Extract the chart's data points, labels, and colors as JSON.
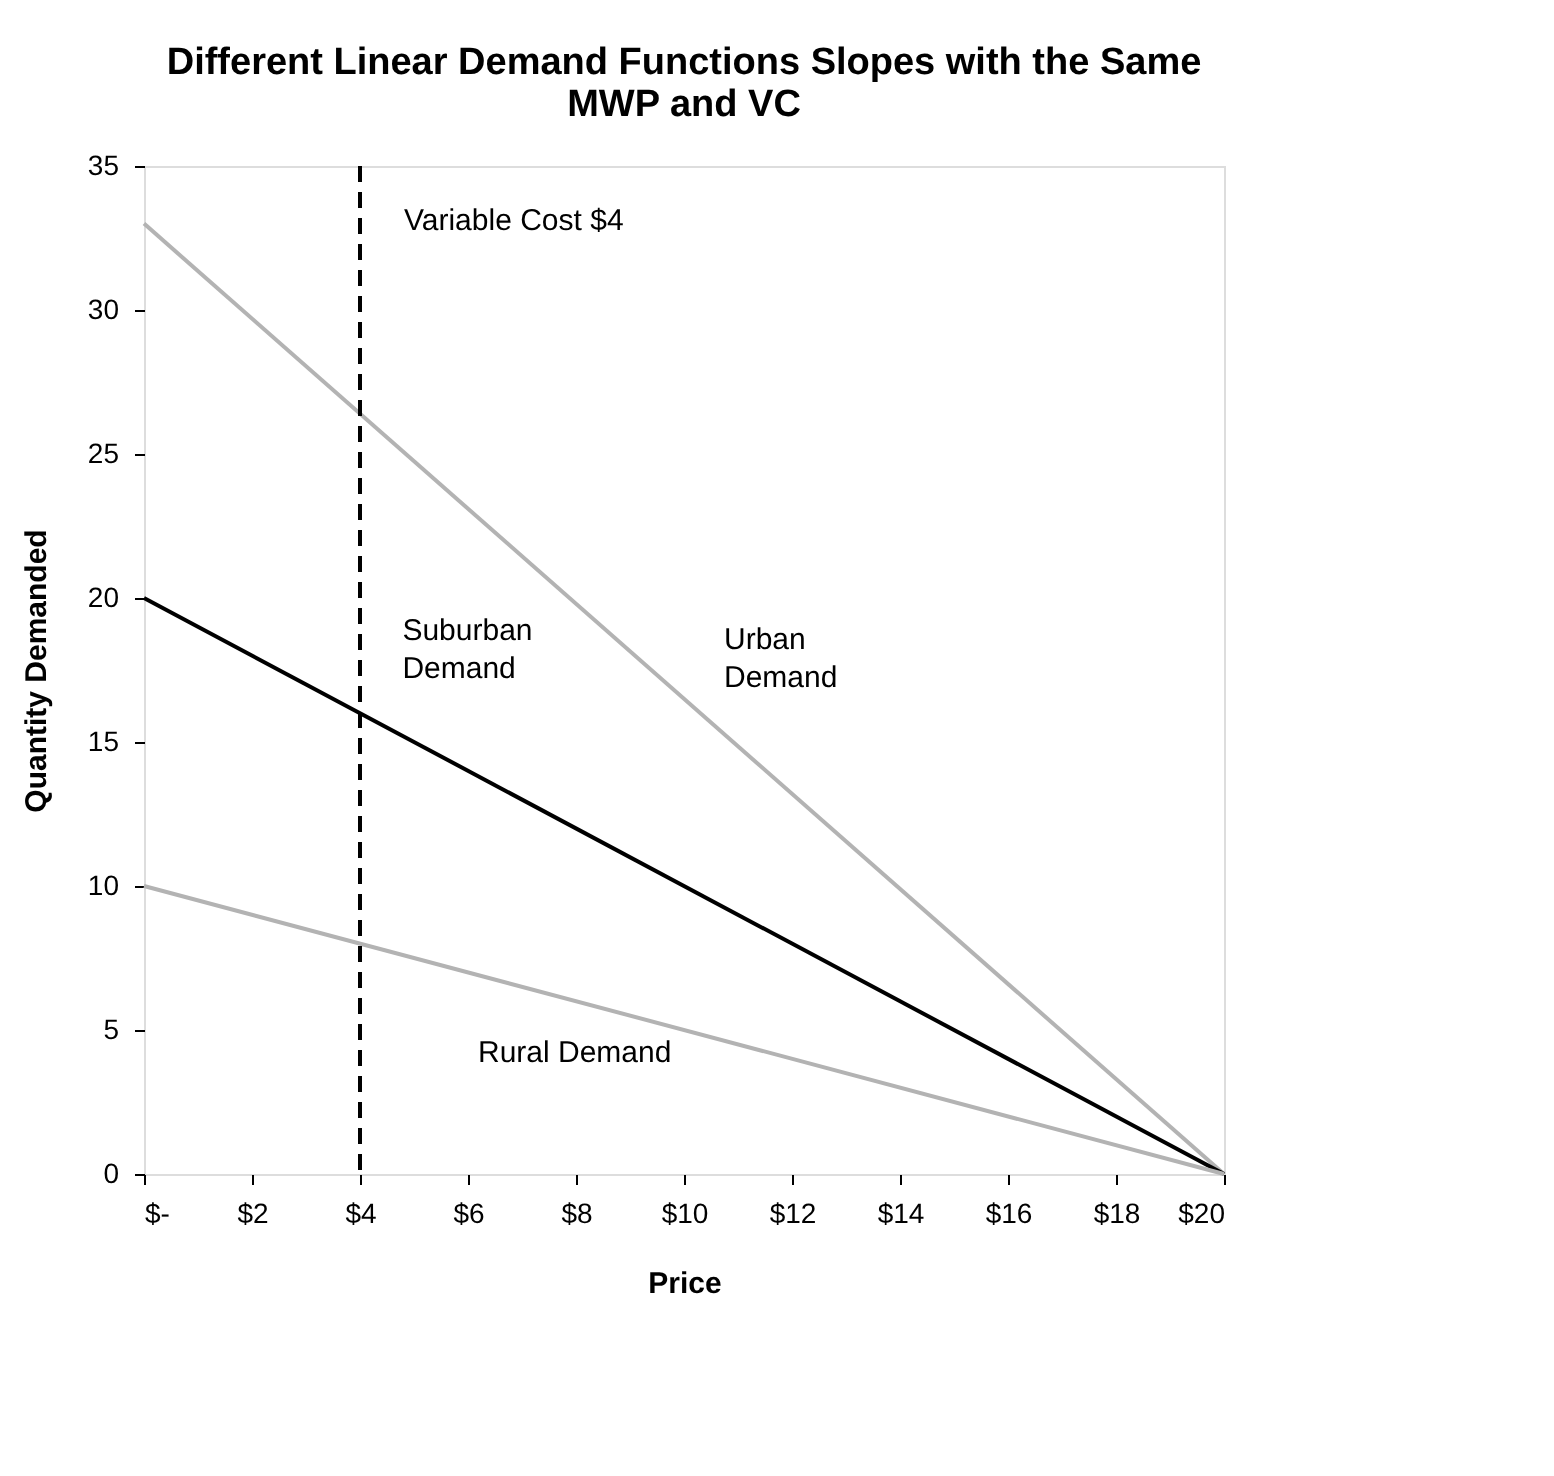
{
  "chart_data": {
    "type": "line",
    "title": "Different Linear Demand Functions Slopes with the Same MWP and VC",
    "xlabel": "Price",
    "ylabel": "Quantity Demanded",
    "x": [
      0,
      20
    ],
    "series": [
      {
        "name": "Urban Demand",
        "color": "#b3b3b3",
        "values": [
          33,
          0
        ]
      },
      {
        "name": "Suburban Demand",
        "color": "#000000",
        "values": [
          20,
          0
        ]
      },
      {
        "name": "Rural Demand",
        "color": "#b3b3b3",
        "values": [
          10,
          0
        ]
      }
    ],
    "xlim": [
      0,
      20
    ],
    "ylim": [
      0,
      35
    ],
    "xticks": [
      {
        "value": 0,
        "label": "$-"
      },
      {
        "value": 2,
        "label": "$2"
      },
      {
        "value": 4,
        "label": "$4"
      },
      {
        "value": 6,
        "label": "$6"
      },
      {
        "value": 8,
        "label": "$8"
      },
      {
        "value": 10,
        "label": "$10"
      },
      {
        "value": 12,
        "label": "$12"
      },
      {
        "value": 14,
        "label": "$14"
      },
      {
        "value": 16,
        "label": "$16"
      },
      {
        "value": 18,
        "label": "$18"
      },
      {
        "value": 20,
        "label": "$20"
      }
    ],
    "yticks": [
      0,
      5,
      10,
      15,
      20,
      25,
      30,
      35
    ],
    "ref_lines": [
      {
        "axis": "x",
        "value": 4,
        "label": "Variable Cost $4",
        "color": "#000000",
        "line_style": "dashed"
      }
    ],
    "grid": false,
    "marker": "none",
    "line_style": "solid"
  }
}
